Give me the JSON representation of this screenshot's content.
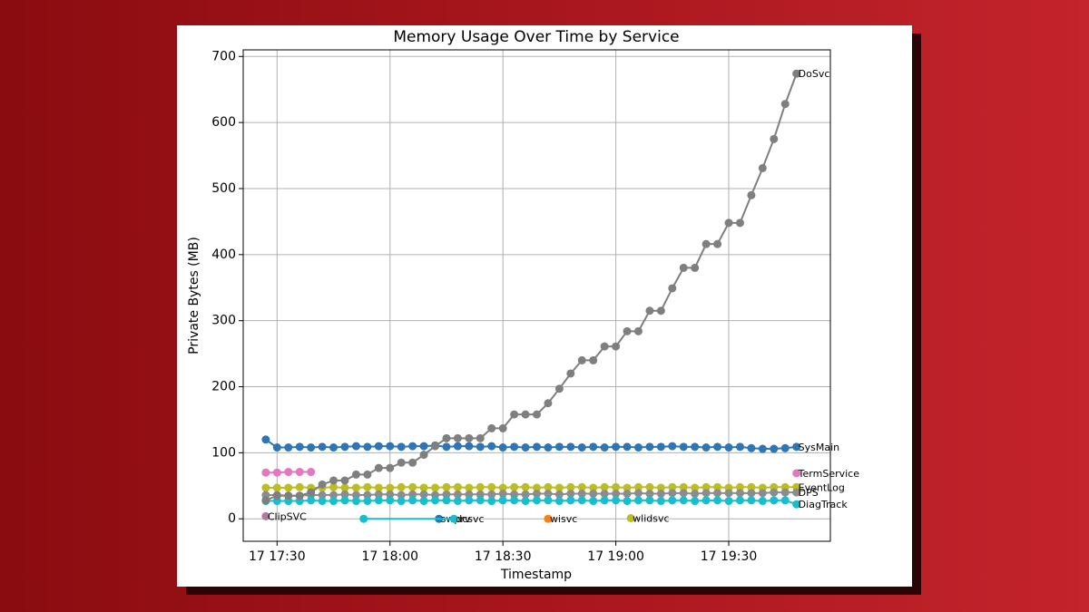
{
  "chart_data": {
    "type": "line",
    "title": "Memory Usage Over Time by Service",
    "x_label": "Timestamp",
    "y_label": "Private Bytes (MB)",
    "x": [
      "17 17:27",
      "17 17:30",
      "17 17:33",
      "17 17:36",
      "17 17:39",
      "17 17:42",
      "17 17:45",
      "17 17:48",
      "17 17:51",
      "17 17:54",
      "17 17:57",
      "17 18:00",
      "17 18:03",
      "17 18:06",
      "17 18:09",
      "17 18:12",
      "17 18:15",
      "17 18:18",
      "17 18:21",
      "17 18:24",
      "17 18:27",
      "17 18:30",
      "17 18:33",
      "17 18:36",
      "17 18:39",
      "17 18:42",
      "17 18:45",
      "17 18:48",
      "17 18:51",
      "17 18:54",
      "17 18:57",
      "17 19:00",
      "17 19:03",
      "17 19:06",
      "17 19:09",
      "17 19:12",
      "17 19:15",
      "17 19:18",
      "17 19:21",
      "17 19:24",
      "17 19:27",
      "17 19:30",
      "17 19:33",
      "17 19:36",
      "17 19:39",
      "17 19:42",
      "17 19:45",
      "17 19:48"
    ],
    "series": [
      {
        "name": "SysMain",
        "color": "#2e75b6",
        "values": [
          120,
          108,
          108,
          109,
          108,
          109,
          108,
          109,
          110,
          109,
          110,
          110,
          109,
          110,
          110,
          111,
          109,
          110,
          110,
          109,
          110,
          108,
          109,
          108,
          109,
          108,
          109,
          109,
          108,
          109,
          108,
          109,
          109,
          108,
          109,
          109,
          110,
          109,
          109,
          108,
          109,
          108,
          109,
          107,
          106,
          106,
          107,
          109
        ]
      },
      {
        "name": "EventLog",
        "color": "#bcbd22",
        "values": [
          47,
          47,
          47,
          48,
          47,
          47,
          48,
          47,
          47,
          48,
          47,
          47,
          48,
          48,
          47,
          47,
          48,
          48,
          47,
          48,
          48,
          47,
          48,
          48,
          47,
          48,
          47,
          48,
          48,
          47,
          48,
          48,
          47,
          48,
          48,
          47,
          48,
          48,
          47,
          48,
          48,
          47,
          48,
          48,
          47,
          48,
          48,
          48
        ]
      },
      {
        "name": "DPS",
        "color": "#8c8c8c",
        "values": [
          36,
          36,
          35,
          35,
          36,
          36,
          36,
          37,
          36,
          36,
          37,
          37,
          36,
          37,
          37,
          36,
          37,
          37,
          37,
          37,
          37,
          38,
          37,
          37,
          38,
          38,
          37,
          38,
          38,
          38,
          38,
          38,
          38,
          39,
          38,
          38,
          39,
          39,
          38,
          39,
          39,
          39,
          39,
          39,
          39,
          40,
          40,
          40
        ]
      },
      {
        "name": "DiagTrack",
        "color": "#17becf",
        "values": [
          27,
          27,
          27,
          27,
          28,
          27,
          27,
          28,
          27,
          27,
          28,
          28,
          27,
          28,
          27,
          28,
          28,
          27,
          28,
          28,
          27,
          28,
          28,
          27,
          28,
          28,
          27,
          28,
          28,
          27,
          28,
          28,
          27,
          28,
          28,
          27,
          28,
          28,
          27,
          28,
          28,
          27,
          28,
          28,
          27,
          28,
          28,
          22
        ]
      },
      {
        "name": "DoSvc",
        "color": "#7f7f7f",
        "values": [
          28,
          35,
          35,
          35,
          40,
          52,
          58,
          58,
          67,
          67,
          77,
          77,
          85,
          85,
          97,
          110,
          122,
          122,
          122,
          122,
          137,
          137,
          158,
          158,
          158,
          175,
          197,
          220,
          240,
          240,
          261,
          261,
          284,
          284,
          315,
          315,
          349,
          380,
          380,
          416,
          416,
          448,
          448,
          490,
          531,
          575,
          628,
          674
        ]
      },
      {
        "name": "TermService",
        "color": "#e377c2",
        "x": [
          "17 17:27",
          "17 17:30",
          "17 17:33",
          "17 17:36",
          "17 17:39",
          "17 17:42",
          "17 19:48"
        ],
        "values": [
          70,
          70,
          71,
          71,
          71,
          null,
          69
        ]
      },
      {
        "name": "ClipSVC",
        "color": "#b07aa1",
        "x": [
          "17 17:27"
        ],
        "values": [
          4
        ]
      },
      {
        "name": "swprv",
        "color": "#1f77b4",
        "x": [
          "17 18:13"
        ],
        "values": [
          0
        ]
      },
      {
        "name": "dcsvc",
        "color": "#17becf",
        "x": [
          "17 17:53",
          "17 18:17"
        ],
        "values": [
          0,
          0
        ]
      },
      {
        "name": "wisvc",
        "color": "#ff7f0e",
        "x": [
          "17 18:42"
        ],
        "values": [
          0
        ]
      },
      {
        "name": "wlidsvc",
        "color": "#bcbd22",
        "x": [
          "17 19:04"
        ],
        "values": [
          1
        ]
      }
    ],
    "xlim": [
      "17 17:21",
      "17 19:57"
    ],
    "xticks": [
      "17 17:30",
      "17 18:00",
      "17 18:30",
      "17 19:00",
      "17 19:30"
    ],
    "ylim": [
      -34,
      710
    ],
    "yticks": [
      0,
      100,
      200,
      300,
      400,
      500,
      600,
      700
    ],
    "grid": true
  }
}
